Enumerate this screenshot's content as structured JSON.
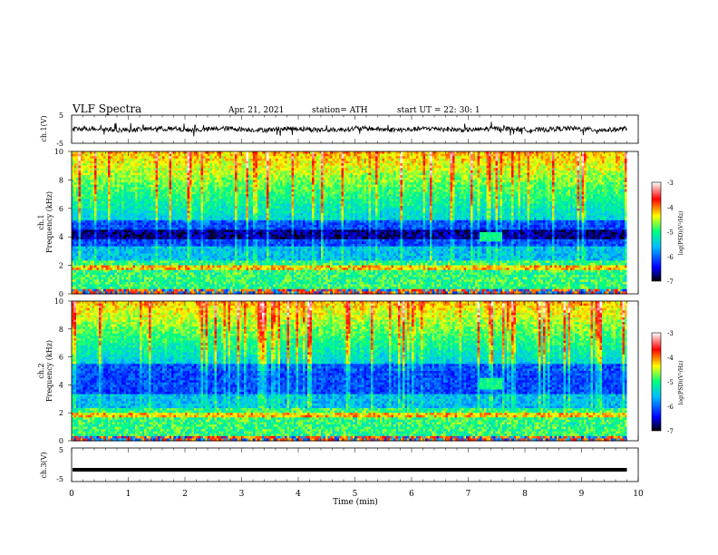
{
  "header": {
    "title": "VLF Spectra",
    "date": "Apr. 21, 2021",
    "station": "station= ATH",
    "start": "start  UT  =   22: 30: 1"
  },
  "chart_data": [
    {
      "type": "line",
      "name": "ch1-waveform",
      "ylabel": "ch.1(V)",
      "ylim": [
        -5,
        5
      ],
      "yticks": [
        "5",
        "-5"
      ],
      "xlim": [
        0,
        10
      ],
      "approx_level": 0,
      "approx_amplitude": 1.2,
      "color": "#000000"
    },
    {
      "type": "heatmap",
      "name": "ch1-spectrogram",
      "ylabel_line1": "ch.1",
      "ylabel_line2": "Frequency (kHz)",
      "ylim": [
        0,
        10
      ],
      "yticks": [
        "0",
        "2",
        "4",
        "6",
        "8",
        "10"
      ],
      "xlim": [
        0,
        9.8
      ],
      "colorbar": {
        "label": "log(PSD)(V²/Hz)",
        "range": [
          -7,
          -3
        ],
        "ticks": [
          "-3",
          "-4",
          "-5",
          "-6",
          "-7"
        ],
        "colormap": [
          "#000000",
          "#0000ff",
          "#00c0ff",
          "#00ff80",
          "#ffff00",
          "#ff0000",
          "#ffffff"
        ]
      },
      "features": {
        "quiet_band_khz": [
          3.3,
          5.2
        ],
        "dark_band_khz": [
          3.8,
          4.5
        ],
        "lower_band_khz": [
          0.5,
          2.4
        ],
        "event_minutes": [
          7.2,
          7.6
        ],
        "event_khz": [
          3.7,
          4.3
        ]
      }
    },
    {
      "type": "heatmap",
      "name": "ch2-spectrogram",
      "ylabel_line1": "ch.2",
      "ylabel_line2": "Frequency (kHz)",
      "ylim": [
        0,
        10
      ],
      "yticks": [
        "0",
        "2",
        "4",
        "6",
        "8",
        "10"
      ],
      "xlim": [
        0,
        9.8
      ],
      "colorbar": {
        "label": "log(PSD)(V²/Hz)",
        "range": [
          -7,
          -3
        ],
        "ticks": [
          "-3",
          "-4",
          "-5",
          "-6",
          "-7"
        ],
        "colormap": [
          "#000000",
          "#0000ff",
          "#00c0ff",
          "#00ff80",
          "#ffff00",
          "#ff0000",
          "#ffffff"
        ]
      },
      "features": {
        "quiet_band_khz": [
          3.4,
          5.5
        ],
        "lower_band_khz": [
          0.5,
          2.4
        ],
        "event_minutes": [
          7.2,
          7.6
        ],
        "event_khz": [
          3.6,
          4.5
        ]
      }
    },
    {
      "type": "line",
      "name": "ch3-waveform",
      "ylabel": "ch.3(V)",
      "ylim": [
        -5,
        5
      ],
      "yticks": [
        "5",
        "-5"
      ],
      "xlim": [
        0,
        9.8
      ],
      "approx_level": -1.5,
      "color": "#000000"
    }
  ],
  "xaxis": {
    "label": "Time  (min)",
    "ticks": [
      "0",
      "1",
      "2",
      "3",
      "4",
      "5",
      "6",
      "7",
      "8",
      "9",
      "10"
    ],
    "range": [
      0,
      10
    ]
  }
}
